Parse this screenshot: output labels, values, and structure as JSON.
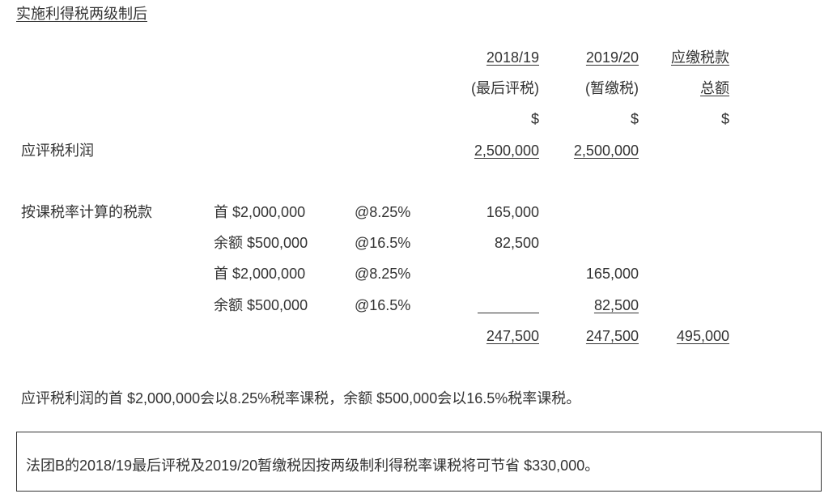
{
  "title": "实施利得税两级制后",
  "headers": {
    "col1": [
      "2018/19",
      "(最后评税)",
      "$"
    ],
    "col2": [
      "2019/20",
      "(暂缴税)",
      "$"
    ],
    "col3": [
      "应缴税款",
      "总额",
      "$"
    ]
  },
  "assessable_profit": {
    "label": "应评税利润",
    "col1": "2,500,000",
    "col2": "2,500,000"
  },
  "tax_calc": {
    "label": "按课税率计算的税款",
    "rows": [
      {
        "desc": "首 $2,000,000",
        "rate": "@8.25%",
        "col1": "165,000",
        "col2": ""
      },
      {
        "desc": "余额 $500,000",
        "rate": "@16.5%",
        "col1": "82,500",
        "col2": ""
      },
      {
        "desc": "首 $2,000,000",
        "rate": "@8.25%",
        "col1": "",
        "col2": "165,000"
      },
      {
        "desc": "余额 $500,000",
        "rate": "@16.5%",
        "col1": "",
        "col2": "82,500"
      }
    ]
  },
  "totals": {
    "col1": "247,500",
    "col2": "247,500",
    "col3": "495,000"
  },
  "note": "应评税利润的首 $2,000,000会以8.25%税率课税，余额 $500,000会以16.5%税率课税。",
  "summary": "法团B的2018/19最后评税及2019/20暂缴税因按两级制利得税率课税将可节省 $330,000。"
}
